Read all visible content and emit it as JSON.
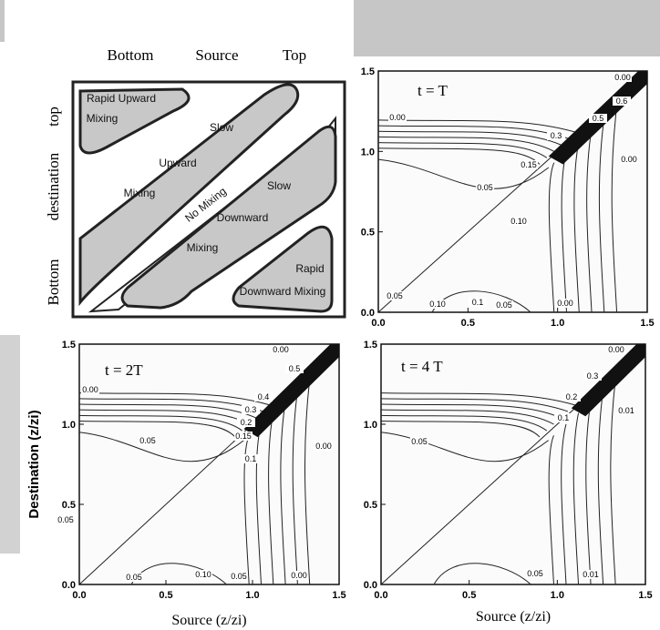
{
  "schematic": {
    "column_labels": [
      "Bottom",
      "Source",
      "Top"
    ],
    "row_labels": [
      "top",
      "destination",
      "Bottom"
    ],
    "regions": [
      "Rapid Upward",
      "Mixing",
      "Slow",
      "Upward",
      "Mixing",
      "No Mixing",
      "Slow",
      "Downward",
      "Mixing",
      "Rapid",
      "Downward Mixing"
    ]
  },
  "panels": [
    {
      "title": "t = T",
      "xticks": [
        "0.0",
        "0.5",
        "1.0",
        "1.5"
      ],
      "yticks": [
        "0.0",
        "0.5",
        "1.0",
        "1.5"
      ],
      "contour_labels": [
        "0.00",
        "0.6",
        "0.5",
        "0.00",
        "0.3",
        "0.15",
        "0.05",
        "0.00",
        "0.10",
        "0.05",
        "0.10",
        "0.1",
        "0.05",
        "0.00"
      ]
    },
    {
      "title": "t = 2T",
      "xticks": [
        "0.0",
        "0.5",
        "1.0",
        "1.5"
      ],
      "yticks": [
        "0.0",
        "0.5",
        "1.0",
        "1.5"
      ],
      "contour_labels": [
        "0.00",
        "0.5",
        "0.4",
        "0.3",
        "0.2",
        "0.15",
        "0.1",
        "0.00",
        "0.05",
        "0.00",
        "0.05",
        "0.05",
        "0.10",
        "0.05",
        "0.00"
      ],
      "xlabel": "Source (z/zi)",
      "ylabel": "Destination (z/zi)"
    },
    {
      "title": "t = 4 T",
      "xticks": [
        "0.0",
        "0.5",
        "1.0",
        "1.5"
      ],
      "yticks": [
        "0.0",
        "0.5",
        "1.0",
        "1.5"
      ],
      "contour_labels": [
        "0.00",
        "0.3",
        "0.2",
        "0.1",
        "0.01",
        "0.05",
        "0.05",
        "0.01"
      ],
      "xlabel": "Source (z/zi)"
    }
  ]
}
